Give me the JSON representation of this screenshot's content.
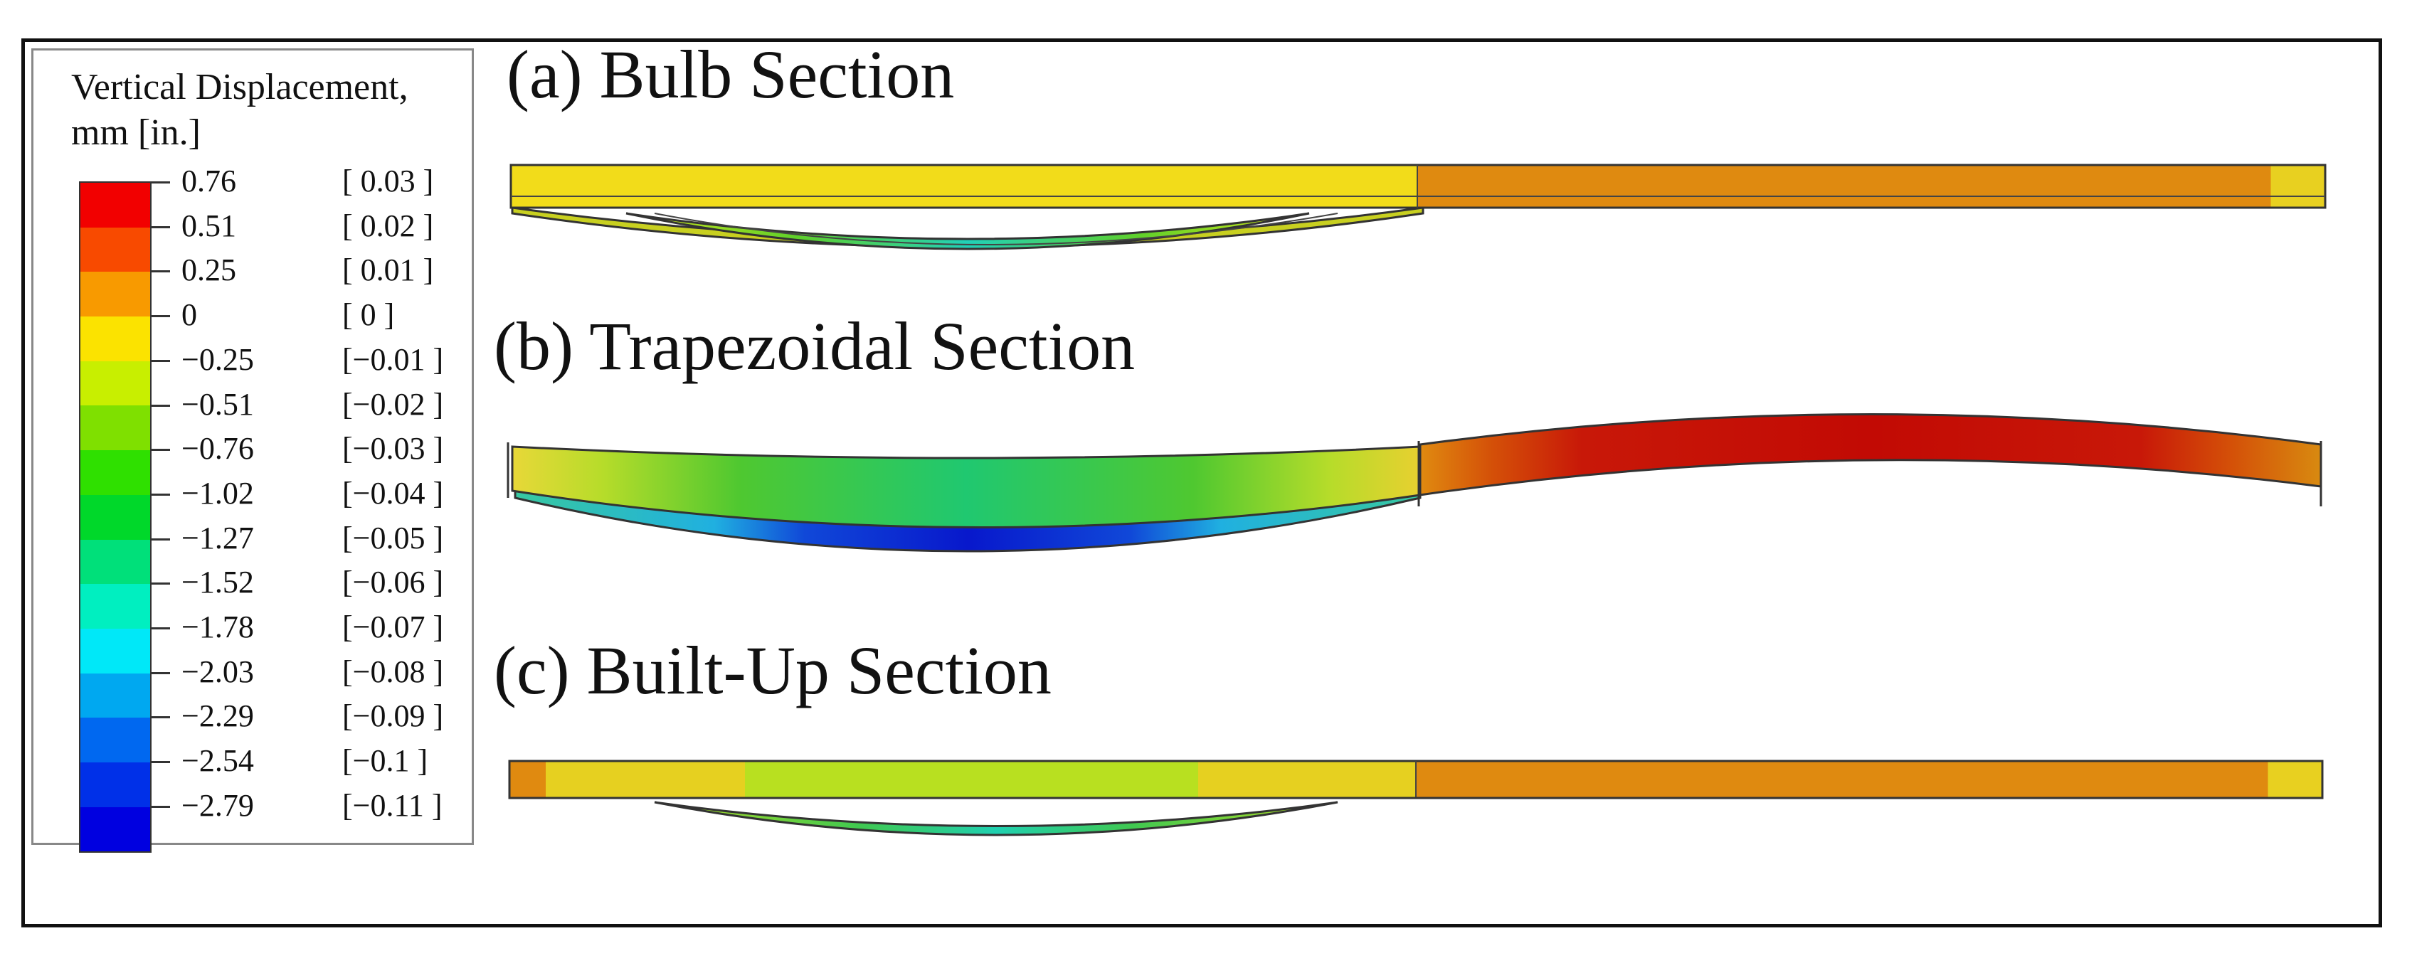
{
  "legend": {
    "title_line1": "Vertical Displacement,",
    "title_line2": "mm [in.]",
    "entries": [
      {
        "mm": "0.76",
        "inch": "[  0.03  ]",
        "color": "#f20000"
      },
      {
        "mm": "0.51",
        "inch": "[  0.02  ]",
        "color": "#f84a00"
      },
      {
        "mm": "0.25",
        "inch": "[  0.01  ]",
        "color": "#f89a00"
      },
      {
        "mm": "0",
        "inch": "[    0    ]",
        "color": "#fbe300"
      },
      {
        "mm": "−0.25",
        "inch": "[−0.01 ]",
        "color": "#c8ef00"
      },
      {
        "mm": "−0.51",
        "inch": "[−0.02 ]",
        "color": "#7fe000"
      },
      {
        "mm": "−0.76",
        "inch": "[−0.03 ]",
        "color": "#2fe000"
      },
      {
        "mm": "−1.02",
        "inch": "[−0.04 ]",
        "color": "#00d82a"
      },
      {
        "mm": "−1.27",
        "inch": "[−0.05 ]",
        "color": "#00e07a"
      },
      {
        "mm": "−1.52",
        "inch": "[−0.06 ]",
        "color": "#00efc0"
      },
      {
        "mm": "−1.78",
        "inch": "[−0.07 ]",
        "color": "#00e8f8"
      },
      {
        "mm": "−2.03",
        "inch": "[−0.08 ]",
        "color": "#00a8f0"
      },
      {
        "mm": "−2.29",
        "inch": "[−0.09 ]",
        "color": "#0068f0"
      },
      {
        "mm": "−2.54",
        "inch": "[−0.1  ]",
        "color": "#0030e8"
      },
      {
        "mm": "−2.79",
        "inch": "[−0.11 ]",
        "color": "#0000e0"
      }
    ]
  },
  "sections": {
    "a": "(a) Bulb Section",
    "b": "(b) Trapezoidal Section",
    "c": "(c) Built-Up Section"
  }
}
